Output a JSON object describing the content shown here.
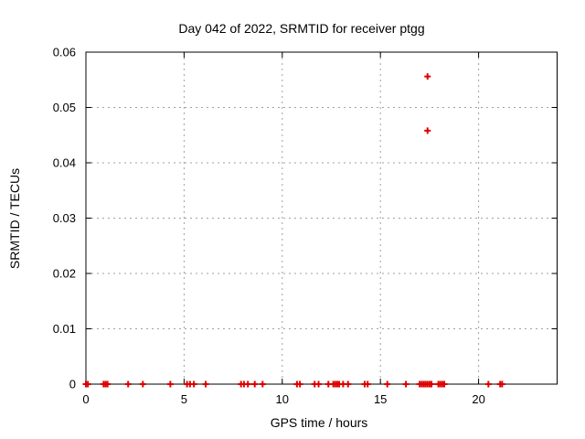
{
  "chart_data": {
    "type": "scatter",
    "title": "Day 042 of 2022, SRMTID for receiver ptgg",
    "xlabel": "GPS time / hours",
    "ylabel": "SRMTID / TECUs",
    "xlim": [
      0,
      24
    ],
    "ylim": [
      0,
      0.06
    ],
    "xticks": {
      "values": [
        0,
        5,
        10,
        15,
        20
      ],
      "labels": [
        "0",
        "5",
        "10",
        "15",
        "20"
      ]
    },
    "yticks": {
      "values": [
        0,
        0.01,
        0.02,
        0.03,
        0.04,
        0.05,
        0.06
      ],
      "labels": [
        "0",
        "0.01",
        "0.02",
        "0.03",
        "0.04",
        "0.05",
        "0.06"
      ]
    },
    "grid": true,
    "grid_style": "dashed",
    "legend": false,
    "marker": "plus",
    "colors": {
      "marker": "#dd0000",
      "grid": "#a0a0a0",
      "frame": "#000000",
      "text": "#000000",
      "background": "#ffffff"
    },
    "series": [
      {
        "name": "SRMTID",
        "points": [
          [
            0.0,
            0
          ],
          [
            0.1,
            0
          ],
          [
            0.9,
            0
          ],
          [
            1.0,
            0
          ],
          [
            1.1,
            0
          ],
          [
            2.15,
            0
          ],
          [
            2.9,
            0
          ],
          [
            4.3,
            0
          ],
          [
            5.15,
            0
          ],
          [
            5.3,
            0
          ],
          [
            5.5,
            0
          ],
          [
            6.1,
            0
          ],
          [
            7.9,
            0
          ],
          [
            8.05,
            0
          ],
          [
            8.25,
            0
          ],
          [
            8.6,
            0
          ],
          [
            9.0,
            0
          ],
          [
            10.75,
            0
          ],
          [
            10.9,
            0
          ],
          [
            11.65,
            0
          ],
          [
            11.85,
            0
          ],
          [
            12.35,
            0
          ],
          [
            12.6,
            0
          ],
          [
            12.7,
            0
          ],
          [
            12.8,
            0
          ],
          [
            12.9,
            0
          ],
          [
            13.1,
            0
          ],
          [
            13.35,
            0
          ],
          [
            14.2,
            0
          ],
          [
            14.35,
            0
          ],
          [
            15.35,
            0
          ],
          [
            16.3,
            0
          ],
          [
            17.0,
            0
          ],
          [
            17.1,
            0
          ],
          [
            17.2,
            0
          ],
          [
            17.3,
            0
          ],
          [
            17.4,
            0
          ],
          [
            17.5,
            0
          ],
          [
            17.6,
            0
          ],
          [
            17.95,
            0
          ],
          [
            18.05,
            0
          ],
          [
            18.15,
            0
          ],
          [
            18.25,
            0
          ],
          [
            20.5,
            0
          ],
          [
            21.1,
            0
          ],
          [
            21.2,
            0
          ],
          [
            17.4,
            0.0556
          ],
          [
            17.4,
            0.0458
          ]
        ]
      }
    ]
  }
}
